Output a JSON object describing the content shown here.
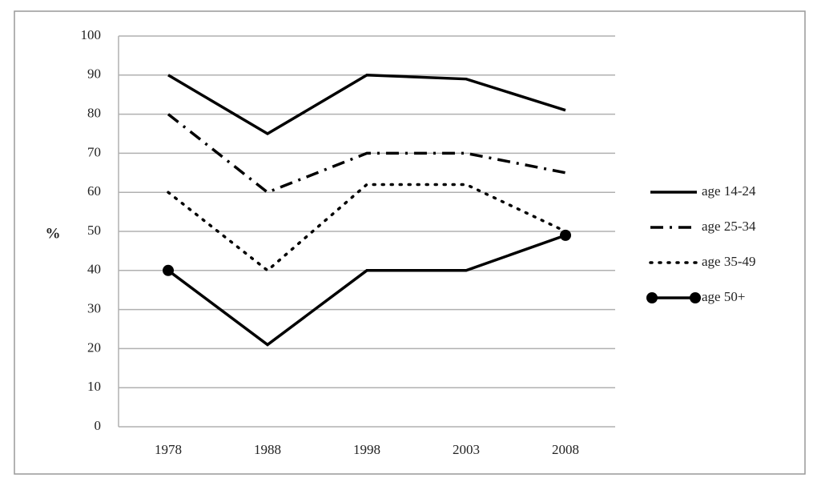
{
  "chart_data": {
    "type": "line",
    "categories": [
      "1978",
      "1988",
      "1998",
      "2003",
      "2008"
    ],
    "y_label": "%",
    "series": [
      {
        "name": "age 14-24",
        "color": "#000000",
        "linestyle": "solid",
        "markers": false,
        "values": [
          90,
          75,
          90,
          89,
          81
        ]
      },
      {
        "name": "age 25-34",
        "color": "#000000",
        "linestyle": "dashdot",
        "markers": false,
        "values": [
          80,
          60,
          70,
          70,
          65
        ]
      },
      {
        "name": "age 35-49",
        "color": "#000000",
        "linestyle": "dotted",
        "markers": false,
        "values": [
          60,
          40,
          62,
          62,
          50
        ]
      },
      {
        "name": "age 50+",
        "color": "#000000",
        "linestyle": "solid",
        "markers": true,
        "values": [
          40,
          21,
          40,
          40,
          49
        ]
      }
    ],
    "ylim": [
      0,
      100
    ],
    "yticks": [
      0,
      10,
      20,
      30,
      40,
      50,
      60,
      70,
      80,
      90,
      100
    ],
    "grid": true,
    "legend": "right"
  }
}
